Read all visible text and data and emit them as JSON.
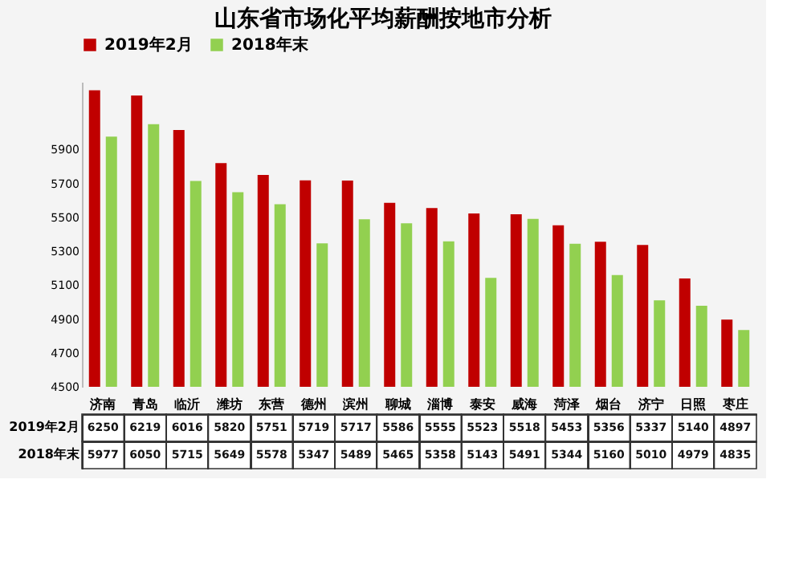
{
  "chart_data": {
    "type": "bar",
    "title": "山东省市场化平均薪酬按地市分析",
    "categories": [
      "济南",
      "青岛",
      "临沂",
      "潍坊",
      "东营",
      "德州",
      "滨州",
      "聊城",
      "淄博",
      "泰安",
      "威海",
      "菏泽",
      "烟台",
      "济宁",
      "日照",
      "枣庄"
    ],
    "series": [
      {
        "name": "2019年2月",
        "color": "#c00000",
        "values": [
          6250,
          6219,
          6016,
          5820,
          5751,
          5719,
          5717,
          5586,
          5555,
          5523,
          5518,
          5453,
          5356,
          5337,
          5140,
          4897
        ]
      },
      {
        "name": "2018年末",
        "color": "#92d050",
        "values": [
          5977,
          6050,
          5715,
          5649,
          5578,
          5347,
          5489,
          5465,
          5358,
          5143,
          5491,
          5344,
          5160,
          5010,
          4979,
          4835
        ]
      }
    ],
    "ylim": [
      4500,
      6300
    ],
    "yticks": [
      4500,
      4700,
      4900,
      5100,
      5300,
      5500,
      5700,
      5900
    ],
    "grid": false,
    "legend": "top",
    "data_labels": true
  }
}
